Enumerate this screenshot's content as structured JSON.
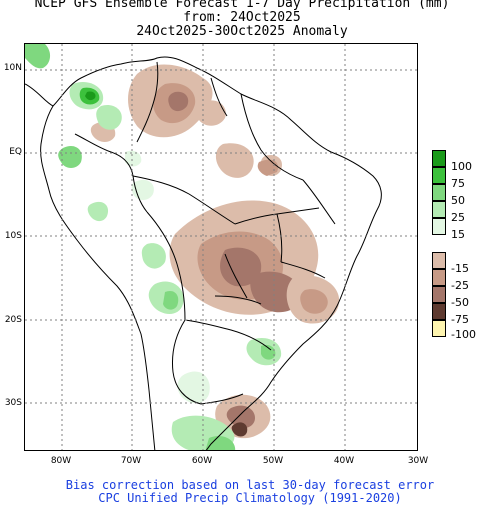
{
  "title": {
    "line1": "NCEP GFS Ensemble Forecast 1-7 Day Precipitation (mm)",
    "line2": "from: 24Oct2025",
    "line3": "24Oct2025-30Oct2025 Anomaly"
  },
  "map": {
    "y_labels": [
      "10N",
      "EQ",
      "10S",
      "20S",
      "30S"
    ],
    "x_labels": [
      "80W",
      "70W",
      "60W",
      "50W",
      "40W",
      "30W"
    ]
  },
  "legend": {
    "entries": [
      {
        "label": "100",
        "color": "#1a9a1a"
      },
      {
        "label": "75",
        "color": "#3cc13c"
      },
      {
        "label": "50",
        "color": "#7fd87f"
      },
      {
        "label": "25",
        "color": "#b4ebb4"
      },
      {
        "label": "15",
        "color": "#e3f7e3"
      },
      {
        "label": "-15",
        "color": "#dcbcaa"
      },
      {
        "label": "-25",
        "color": "#c79a86"
      },
      {
        "label": "-50",
        "color": "#a4766a"
      },
      {
        "label": "-75",
        "color": "#5e3a30"
      },
      {
        "label": "-100",
        "color": "#fef5b0"
      }
    ]
  },
  "footer": {
    "line1": "Bias correction based on last 30-day forecast error",
    "line2": "CPC Unified Precip Climatology (1991-2020)"
  }
}
